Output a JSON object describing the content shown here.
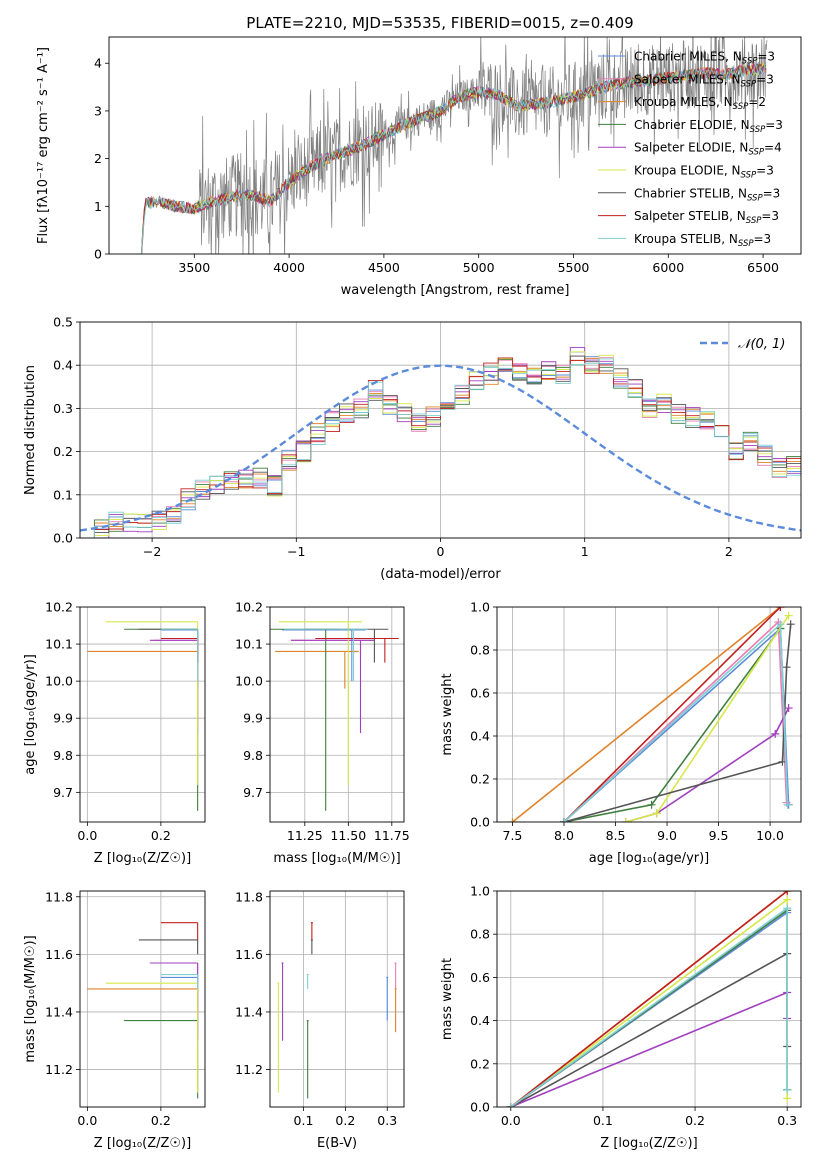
{
  "figure_title": "PLATE=2210, MJD=53535, FIBERID=0015, z=0.409",
  "colors": {
    "Chabrier MILES": "#5b8bd9",
    "Salpeter MILES": "#e87eb4",
    "Kroupa MILES": "#e0822a",
    "Chabrier ELODIE": "#3f7f3f",
    "Salpeter ELODIE": "#a23fbf",
    "Kroupa ELODIE": "#d5e84a",
    "Chabrier STELIB": "#555555",
    "Salpeter STELIB": "#c0201e",
    "Kroupa STELIB": "#7fcfd3",
    "data": "#808080",
    "gaussian": "#5b8bd9"
  },
  "chart_data": [
    {
      "id": "spectrum",
      "type": "line",
      "xlabel": "wavelength [Angstrom, rest frame]",
      "ylabel": "Flux [fλ10⁻¹⁷ erg cm⁻² s⁻¹ A⁻¹]",
      "xlim": [
        3050,
        6700
      ],
      "ylim": [
        0,
        4.55
      ],
      "xticks": [
        3500,
        4000,
        4500,
        5000,
        5500,
        6000,
        6500
      ],
      "yticks": [
        0,
        1,
        2,
        3,
        4
      ],
      "legend_position": "right",
      "legend": [
        {
          "name": "Chabrier MILES",
          "nssp": "3"
        },
        {
          "name": "Salpeter MILES",
          "nssp": "3"
        },
        {
          "name": "Kroupa MILES",
          "nssp": "2"
        },
        {
          "name": "Chabrier ELODIE",
          "nssp": "3"
        },
        {
          "name": "Salpeter ELODIE",
          "nssp": "4"
        },
        {
          "name": "Kroupa ELODIE",
          "nssp": "3"
        },
        {
          "name": "Chabrier STELIB",
          "nssp": "3"
        },
        {
          "name": "Salpeter STELIB",
          "nssp": "3"
        },
        {
          "name": "Kroupa STELIB",
          "nssp": "3"
        }
      ],
      "model_continuum": {
        "x": [
          3220,
          3240,
          3300,
          3400,
          3500,
          3600,
          3700,
          3800,
          3900,
          4000,
          4100,
          4200,
          4300,
          4400,
          4500,
          4600,
          4700,
          4800,
          4900,
          5000,
          5100,
          5200,
          5300,
          5400,
          5500,
          5600,
          5700,
          5800,
          5900,
          6000,
          6100,
          6200,
          6300,
          6400,
          6520
        ],
        "y": [
          0.0,
          1.05,
          1.1,
          1.0,
          0.95,
          1.1,
          1.2,
          1.25,
          1.1,
          1.5,
          1.8,
          2.0,
          2.15,
          2.3,
          2.5,
          2.7,
          2.85,
          3.0,
          3.3,
          3.4,
          3.35,
          3.1,
          3.15,
          3.2,
          3.3,
          3.4,
          3.55,
          3.6,
          3.65,
          3.7,
          3.75,
          3.8,
          3.75,
          3.85,
          3.9
        ]
      }
    },
    {
      "id": "residuals",
      "type": "histogram",
      "xlabel": "(data-model)/error",
      "ylabel": "Normed distribution",
      "xlim": [
        -2.5,
        2.5
      ],
      "ylim": [
        0,
        0.5
      ],
      "xticks": [
        -2,
        -1,
        0,
        1,
        2
      ],
      "yticks": [
        0.0,
        0.1,
        0.2,
        0.3,
        0.4,
        0.5
      ],
      "grid": true,
      "legend_position": "top-right",
      "gaussian_label": "𝒩(0, 1)",
      "bin_width": 0.1,
      "base_hist": [
        0.01,
        0.02,
        0.04,
        0.04,
        0.03,
        0.04,
        0.05,
        0.09,
        0.11,
        0.12,
        0.13,
        0.14,
        0.14,
        0.12,
        0.18,
        0.2,
        0.24,
        0.27,
        0.29,
        0.3,
        0.34,
        0.31,
        0.29,
        0.27,
        0.28,
        0.3,
        0.33,
        0.36,
        0.38,
        0.41,
        0.39,
        0.37,
        0.39,
        0.38,
        0.42,
        0.4,
        0.4,
        0.37,
        0.35,
        0.3,
        0.31,
        0.29,
        0.28,
        0.27,
        0.25,
        0.2,
        0.22,
        0.19,
        0.16,
        0.17,
        0.13,
        0.12,
        0.1,
        0.09,
        0.08,
        0.09,
        0.07,
        0.06,
        0.05,
        0.04
      ]
    },
    {
      "id": "age-vs-Z",
      "type": "errorbar",
      "xlabel": "Z [log₁₀(Z/Z☉)]",
      "ylabel": "age  [log₁₀(age/yr)]",
      "xlim": [
        -0.02,
        0.32
      ],
      "ylim": [
        9.62,
        10.2
      ],
      "xticks": [
        0.0,
        0.2
      ],
      "yticks": [
        9.7,
        9.8,
        9.9,
        10.0,
        10.1,
        10.2
      ],
      "grid": true
    },
    {
      "id": "age-vs-mass",
      "type": "errorbar",
      "xlabel": "mass [log₁₀(M/M☉)]",
      "ylabel": "",
      "xlim": [
        11.05,
        11.82
      ],
      "ylim": [
        9.62,
        10.2
      ],
      "xticks": [
        11.25,
        11.5,
        11.75
      ],
      "yticks": [
        9.7,
        9.8,
        9.9,
        10.0,
        10.1,
        10.2
      ],
      "grid": true
    },
    {
      "id": "weight-vs-age",
      "type": "line",
      "xlabel": "age  [log₁₀(age/yr)]",
      "ylabel": "mass weight",
      "xlim": [
        7.35,
        10.3
      ],
      "ylim": [
        0,
        1.0
      ],
      "xticks": [
        7.5,
        8.0,
        8.5,
        9.0,
        9.5,
        10.0
      ],
      "yticks": [
        0.0,
        0.2,
        0.4,
        0.6,
        0.8,
        1.0
      ],
      "grid": true
    },
    {
      "id": "mass-vs-Z",
      "type": "errorbar",
      "xlabel": "Z [log₁₀(Z/Z☉)]",
      "ylabel": "mass [log₁₀(M/M☉)]",
      "xlim": [
        -0.02,
        0.32
      ],
      "ylim": [
        11.07,
        11.82
      ],
      "xticks": [
        0.0,
        0.2
      ],
      "yticks": [
        11.2,
        11.4,
        11.6,
        11.8
      ],
      "grid": true
    },
    {
      "id": "mass-vs-EBV",
      "type": "errorbar",
      "xlabel": "E(B-V)",
      "ylabel": "",
      "xlim": [
        0.02,
        0.34
      ],
      "ylim": [
        11.07,
        11.82
      ],
      "xticks": [
        0.1,
        0.2,
        0.3
      ],
      "yticks": [
        11.2,
        11.4,
        11.6,
        11.8
      ],
      "grid": true
    },
    {
      "id": "weight-vs-Z",
      "type": "line",
      "xlabel": "Z [log₁₀(Z/Z☉)]",
      "ylabel": "mass weight",
      "xlim": [
        -0.015,
        0.315
      ],
      "ylim": [
        0,
        1.0
      ],
      "xticks": [
        0.0,
        0.1,
        0.2,
        0.3
      ],
      "yticks": [
        0.0,
        0.2,
        0.4,
        0.6,
        0.8,
        1.0
      ],
      "grid": true
    }
  ],
  "models": {
    "Chabrier MILES": {
      "Z": 0.2,
      "age": 10.138,
      "mass": 11.52,
      "ebv": 0.3,
      "age_lo": 10.0,
      "mass_lo": 11.37,
      "age_w": [
        [
          8.0,
          0.0
        ],
        [
          10.1,
          0.9
        ],
        [
          10.18,
          0.08
        ]
      ],
      "z_w": [
        [
          0.0,
          0.0
        ],
        [
          0.3,
          0.9
        ],
        [
          0.3,
          0.08
        ]
      ]
    },
    "Salpeter MILES": {
      "Z": 0.18,
      "age": 10.11,
      "mass": 11.57,
      "ebv": 0.32,
      "age_lo": 10.06,
      "mass_lo": 11.48,
      "age_w": [
        [
          8.0,
          0.0
        ],
        [
          10.08,
          0.93
        ],
        [
          10.16,
          0.09
        ]
      ],
      "z_w": [
        [
          0.0,
          0.0
        ],
        [
          0.3,
          0.91
        ],
        [
          0.3,
          0.08
        ]
      ]
    },
    "Kroupa MILES": {
      "Z": 0.0,
      "age": 10.08,
      "mass": 11.48,
      "ebv": 0.32,
      "age_lo": 9.98,
      "mass_lo": 11.33,
      "age_w": [
        [
          7.5,
          0.0
        ],
        [
          10.1,
          1.0
        ]
      ],
      "z_w": [
        [
          0.0,
          0.0
        ],
        [
          0.3,
          1.0
        ]
      ]
    },
    "Chabrier ELODIE": {
      "Z": 0.1,
      "age": 10.14,
      "mass": 11.37,
      "ebv": 0.11,
      "age_lo": 9.65,
      "mass_lo": 11.1,
      "age_w": [
        [
          8.0,
          0.0
        ],
        [
          8.85,
          0.08
        ],
        [
          10.1,
          0.9
        ]
      ],
      "z_w": [
        [
          0.0,
          0.0
        ],
        [
          0.3,
          0.91
        ],
        [
          0.3,
          0.08
        ]
      ]
    },
    "Salpeter ELODIE": {
      "Z": 0.17,
      "age": 10.11,
      "mass": 11.57,
      "ebv": 0.05,
      "age_lo": 9.86,
      "mass_lo": 11.3,
      "age_w": [
        [
          8.6,
          0.0
        ],
        [
          8.9,
          0.04
        ],
        [
          10.05,
          0.41
        ],
        [
          10.18,
          0.53
        ]
      ],
      "z_w": [
        [
          0.0,
          0.0
        ],
        [
          0.3,
          0.53
        ],
        [
          0.3,
          0.41
        ]
      ]
    },
    "Kroupa ELODIE": {
      "Z": 0.05,
      "age": 10.16,
      "mass": 11.5,
      "ebv": 0.04,
      "age_lo": 9.72,
      "mass_lo": 11.12,
      "age_w": [
        [
          8.6,
          0.0
        ],
        [
          8.9,
          0.04
        ],
        [
          10.18,
          0.96
        ]
      ],
      "z_w": [
        [
          0.0,
          0.0
        ],
        [
          0.3,
          0.96
        ],
        [
          0.3,
          0.04
        ]
      ]
    },
    "Chabrier STELIB": {
      "Z": 0.14,
      "age": 10.14,
      "mass": 11.65,
      "ebv": 0.12,
      "age_lo": 10.05,
      "mass_lo": 11.6,
      "age_w": [
        [
          8.0,
          0.0
        ],
        [
          10.12,
          0.28
        ],
        [
          10.16,
          0.72
        ],
        [
          10.2,
          0.92
        ]
      ],
      "z_w": [
        [
          0.0,
          0.0
        ],
        [
          0.3,
          0.71
        ],
        [
          0.3,
          0.28
        ]
      ]
    },
    "Salpeter STELIB": {
      "Z": 0.2,
      "age": 10.115,
      "mass": 11.71,
      "ebv": 0.12,
      "age_lo": 10.05,
      "mass_lo": 11.65,
      "age_w": [
        [
          8.0,
          0.0
        ],
        [
          10.1,
          1.0
        ]
      ],
      "z_w": [
        [
          0.0,
          0.0
        ],
        [
          0.3,
          1.0
        ]
      ]
    },
    "Kroupa STELIB": {
      "Z": 0.2,
      "age": 10.14,
      "mass": 11.53,
      "ebv": 0.11,
      "age_lo": 10.0,
      "mass_lo": 11.48,
      "age_w": [
        [
          8.0,
          0.0
        ],
        [
          10.1,
          0.92
        ],
        [
          10.17,
          0.08
        ]
      ],
      "z_w": [
        [
          0.0,
          0.0
        ],
        [
          0.3,
          0.92
        ],
        [
          0.3,
          0.08
        ]
      ]
    }
  }
}
